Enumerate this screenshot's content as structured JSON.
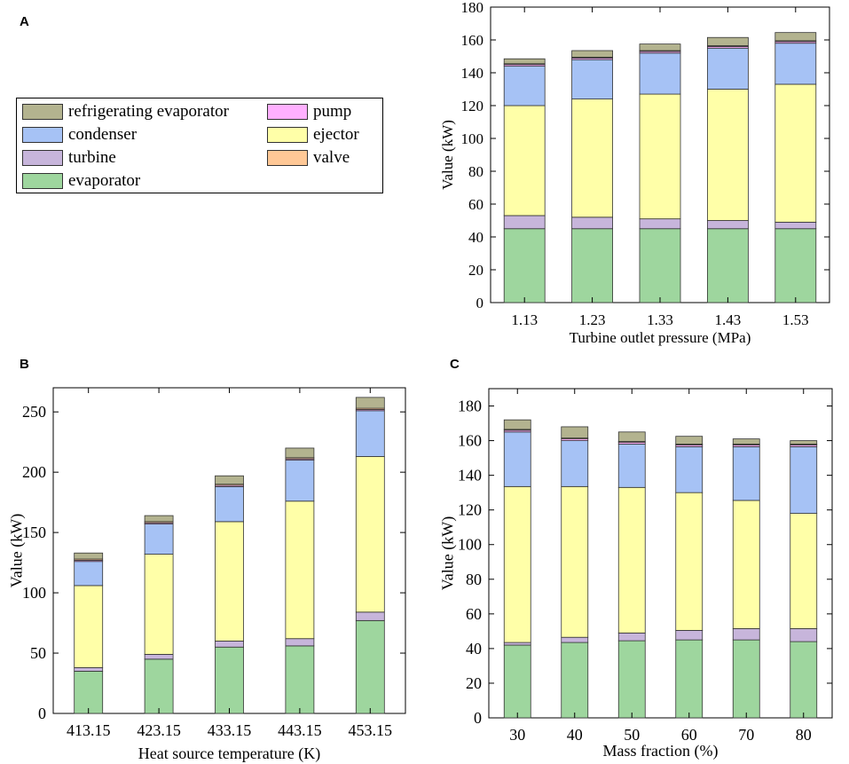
{
  "panels": {
    "a": "A",
    "b": "B",
    "c": "C"
  },
  "legend": {
    "items": [
      {
        "key": "refrigerating_evaporator",
        "label": "refrigerating evaporator",
        "color": "#b3b38f"
      },
      {
        "key": "pump",
        "label": "pump",
        "color": "#ffb0ff"
      },
      {
        "key": "condenser",
        "label": "condenser",
        "color": "#a6c2f5"
      },
      {
        "key": "ejector",
        "label": "ejector",
        "color": "#ffffa8"
      },
      {
        "key": "turbine",
        "label": "turbine",
        "color": "#c7b5db"
      },
      {
        "key": "valve",
        "label": "valve",
        "color": "#ffc896"
      },
      {
        "key": "evaporator",
        "label": "evaporator",
        "color": "#9ed69e"
      }
    ]
  },
  "chart_data": [
    {
      "id": "A",
      "type": "bar",
      "stacked": true,
      "title": "",
      "xlabel": "Turbine outlet pressure (MPa)",
      "ylabel": "Value (kW)",
      "ylim": [
        0,
        180
      ],
      "yticks": [
        0,
        20,
        40,
        60,
        80,
        100,
        120,
        140,
        160,
        180
      ],
      "categories": [
        "1.13",
        "1.23",
        "1.33",
        "1.43",
        "1.53"
      ],
      "series": [
        {
          "name": "evaporator",
          "values": [
            45,
            45,
            45,
            45,
            45
          ]
        },
        {
          "name": "turbine",
          "values": [
            8,
            7,
            6,
            5,
            4
          ]
        },
        {
          "name": "ejector",
          "values": [
            67,
            72,
            76,
            80,
            84
          ]
        },
        {
          "name": "condenser",
          "values": [
            24,
            24,
            25,
            25,
            25
          ]
        },
        {
          "name": "pump",
          "values": [
            1,
            1,
            1,
            1,
            1
          ]
        },
        {
          "name": "valve",
          "values": [
            0.5,
            0.5,
            0.5,
            0.5,
            0.5
          ]
        },
        {
          "name": "refrigerating evaporator",
          "values": [
            3,
            4,
            4,
            5,
            5
          ]
        }
      ]
    },
    {
      "id": "B",
      "type": "bar",
      "stacked": true,
      "title": "",
      "xlabel": "Heat source temperature (K)",
      "ylabel": "Value (kW)",
      "ylim": [
        0,
        270
      ],
      "yticks": [
        0,
        50,
        100,
        150,
        200,
        250
      ],
      "categories": [
        "413.15",
        "423.15",
        "433.15",
        "443.15",
        "453.15"
      ],
      "series": [
        {
          "name": "evaporator",
          "values": [
            35,
            45,
            55,
            56,
            77
          ]
        },
        {
          "name": "turbine",
          "values": [
            3,
            4,
            5,
            6,
            7
          ]
        },
        {
          "name": "ejector",
          "values": [
            68,
            83,
            99,
            114,
            129
          ]
        },
        {
          "name": "condenser",
          "values": [
            20,
            25,
            29,
            34,
            38
          ]
        },
        {
          "name": "pump",
          "values": [
            1,
            1,
            1,
            1,
            1
          ]
        },
        {
          "name": "valve",
          "values": [
            1,
            1,
            1,
            1,
            1
          ]
        },
        {
          "name": "refrigerating evaporator",
          "values": [
            5,
            5,
            7,
            8,
            9
          ]
        }
      ]
    },
    {
      "id": "C",
      "type": "bar",
      "stacked": true,
      "title": "",
      "xlabel": "Mass fraction (%)",
      "ylabel": "Value (kW)",
      "ylim": [
        0,
        190
      ],
      "yticks": [
        0,
        20,
        40,
        60,
        80,
        100,
        120,
        140,
        160,
        180
      ],
      "categories": [
        "30",
        "40",
        "50",
        "60",
        "70",
        "80"
      ],
      "series": [
        {
          "name": "evaporator",
          "values": [
            42,
            43.5,
            44.5,
            45,
            45,
            44
          ]
        },
        {
          "name": "turbine",
          "values": [
            1.5,
            3,
            4.5,
            5.5,
            6.5,
            7.5
          ]
        },
        {
          "name": "ejector",
          "values": [
            90,
            87,
            84,
            79.5,
            74,
            66.5
          ]
        },
        {
          "name": "condenser",
          "values": [
            31.5,
            26.5,
            25,
            26.5,
            31,
            38.5
          ]
        },
        {
          "name": "pump",
          "values": [
            1,
            1,
            1,
            1,
            1,
            1
          ]
        },
        {
          "name": "valve",
          "values": [
            0.5,
            0.5,
            0.5,
            0.5,
            0.5,
            0.5
          ]
        },
        {
          "name": "refrigerating evaporator",
          "values": [
            5.5,
            6.5,
            5.5,
            4.5,
            3,
            2
          ]
        }
      ]
    }
  ]
}
